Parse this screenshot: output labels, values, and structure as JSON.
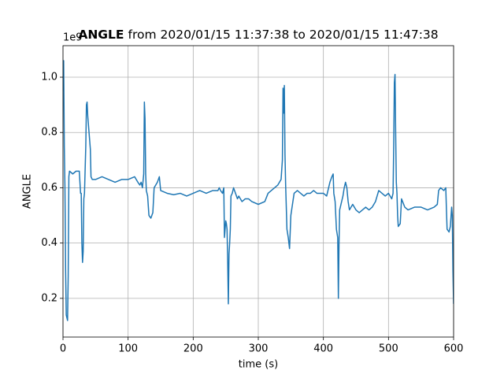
{
  "chart_data": {
    "type": "line",
    "title_bold": "ANGLE",
    "title": "from 2020/01/15 11:37:38 to 2020/01/15 11:47:38",
    "xlabel": "time (s)",
    "ylabel": "ANGLE",
    "y_offset_label": "1e9",
    "xlim": [
      0,
      600
    ],
    "ylim": [
      0.06,
      1.114
    ],
    "xticks": [
      0,
      100,
      200,
      300,
      400,
      500,
      600
    ],
    "yticks": [
      0.2,
      0.4,
      0.6,
      0.8,
      {
        "value": 1.0,
        "label": "1.0"
      }
    ],
    "grid": true,
    "series": [
      {
        "color": "#1f77b4",
        "x": [
          0,
          1,
          2,
          3,
          4,
          5,
          7,
          8,
          9,
          10,
          15,
          20,
          25,
          27,
          28,
          29,
          30,
          31,
          32,
          33,
          35,
          36,
          37,
          38,
          40,
          42,
          43,
          45,
          50,
          60,
          70,
          80,
          90,
          100,
          110,
          115,
          118,
          120,
          122,
          124,
          125,
          126,
          127,
          128,
          130,
          132,
          135,
          138,
          140,
          145,
          148,
          150,
          160,
          170,
          180,
          190,
          200,
          210,
          220,
          230,
          238,
          240,
          242,
          245,
          247,
          248,
          250,
          251,
          252,
          253,
          254,
          255,
          256,
          257,
          258,
          260,
          262,
          265,
          268,
          270,
          275,
          280,
          285,
          290,
          300,
          310,
          315,
          320,
          325,
          330,
          335,
          337,
          338,
          339,
          340,
          341,
          342,
          344,
          346,
          348,
          350,
          355,
          360,
          365,
          370,
          375,
          380,
          385,
          390,
          400,
          405,
          408,
          410,
          413,
          415,
          416,
          418,
          420,
          422,
          423,
          424,
          425,
          428,
          430,
          432,
          434,
          436,
          438,
          440,
          445,
          450,
          455,
          460,
          465,
          470,
          475,
          480,
          485,
          490,
          495,
          500,
          505,
          507,
          508,
          509,
          510,
          511,
          512,
          513,
          514,
          515,
          518,
          520,
          525,
          530,
          540,
          550,
          560,
          570,
          575,
          577,
          580,
          585,
          588,
          589,
          590,
          593,
          595,
          597,
          598,
          599,
          600
        ],
        "values": [
          0.95,
          1.06,
          0.75,
          0.6,
          0.3,
          0.14,
          0.12,
          0.28,
          0.64,
          0.66,
          0.65,
          0.66,
          0.66,
          0.58,
          0.58,
          0.4,
          0.33,
          0.37,
          0.56,
          0.58,
          0.75,
          0.9,
          0.91,
          0.86,
          0.8,
          0.74,
          0.64,
          0.63,
          0.63,
          0.64,
          0.63,
          0.62,
          0.63,
          0.63,
          0.64,
          0.62,
          0.61,
          0.62,
          0.6,
          0.65,
          0.91,
          0.85,
          0.65,
          0.59,
          0.57,
          0.5,
          0.49,
          0.51,
          0.6,
          0.62,
          0.64,
          0.59,
          0.58,
          0.575,
          0.58,
          0.57,
          0.58,
          0.59,
          0.58,
          0.59,
          0.59,
          0.6,
          0.59,
          0.58,
          0.6,
          0.42,
          0.48,
          0.47,
          0.45,
          0.33,
          0.18,
          0.36,
          0.4,
          0.45,
          0.57,
          0.58,
          0.6,
          0.58,
          0.56,
          0.57,
          0.55,
          0.56,
          0.56,
          0.55,
          0.54,
          0.55,
          0.58,
          0.59,
          0.6,
          0.61,
          0.63,
          0.7,
          0.96,
          0.87,
          0.97,
          0.72,
          0.61,
          0.45,
          0.42,
          0.38,
          0.5,
          0.58,
          0.59,
          0.58,
          0.57,
          0.58,
          0.58,
          0.59,
          0.58,
          0.58,
          0.57,
          0.6,
          0.62,
          0.64,
          0.65,
          0.58,
          0.55,
          0.45,
          0.42,
          0.2,
          0.4,
          0.52,
          0.55,
          0.57,
          0.6,
          0.62,
          0.6,
          0.55,
          0.52,
          0.54,
          0.52,
          0.51,
          0.52,
          0.53,
          0.52,
          0.53,
          0.55,
          0.59,
          0.58,
          0.57,
          0.58,
          0.56,
          0.58,
          0.75,
          0.98,
          1.01,
          0.8,
          0.62,
          0.58,
          0.5,
          0.46,
          0.47,
          0.56,
          0.53,
          0.52,
          0.53,
          0.53,
          0.52,
          0.53,
          0.54,
          0.59,
          0.6,
          0.59,
          0.6,
          0.52,
          0.45,
          0.44,
          0.46,
          0.53,
          0.5,
          0.3,
          0.18
        ]
      }
    ]
  }
}
